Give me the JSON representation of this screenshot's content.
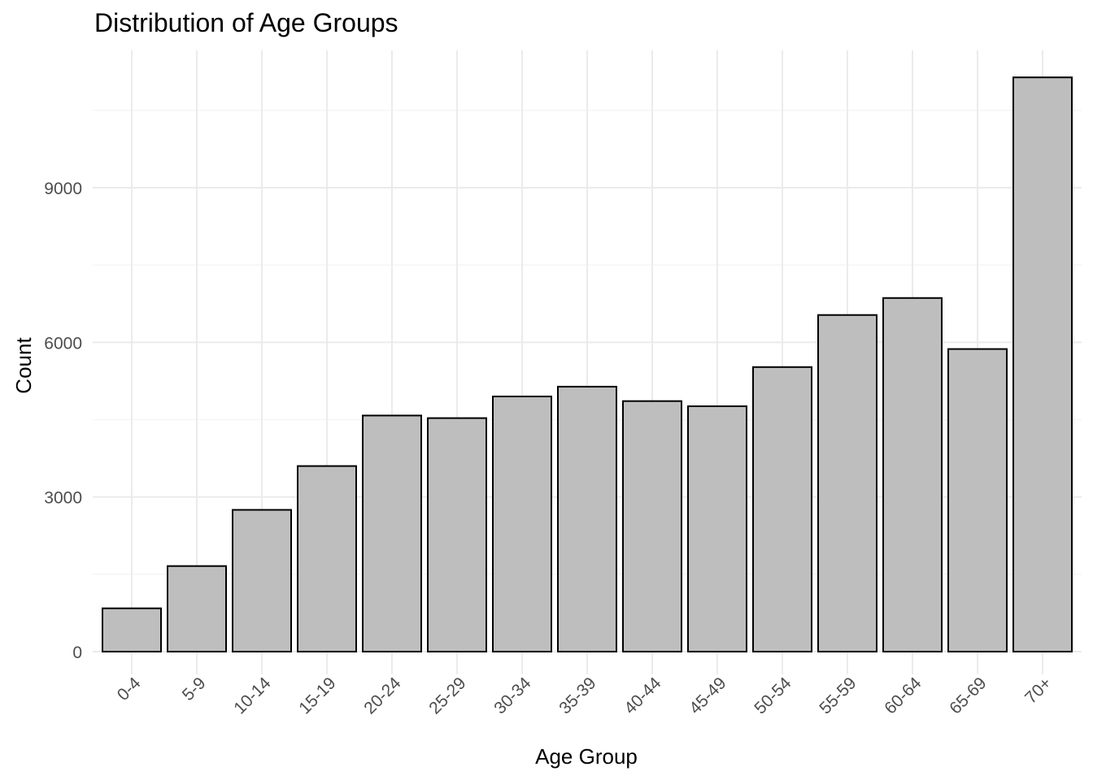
{
  "chart_data": {
    "type": "bar",
    "title": "Distribution of Age Groups",
    "xlabel": "Age Group",
    "ylabel": "Count",
    "categories": [
      "0-4",
      "5-9",
      "10-14",
      "15-19",
      "20-24",
      "25-29",
      "30-34",
      "35-39",
      "40-44",
      "45-49",
      "50-54",
      "55-59",
      "60-64",
      "65-69",
      "70+"
    ],
    "values": [
      840,
      1660,
      2750,
      3600,
      4580,
      4530,
      4950,
      5140,
      4860,
      4760,
      5520,
      6530,
      6860,
      5870,
      11140
    ],
    "yticks": [
      0,
      3000,
      6000,
      9000
    ],
    "ylim": [
      -330,
      11700
    ],
    "grid": true,
    "legend": "none",
    "bar_fill": "#bebebe",
    "bar_stroke": "#000000"
  }
}
